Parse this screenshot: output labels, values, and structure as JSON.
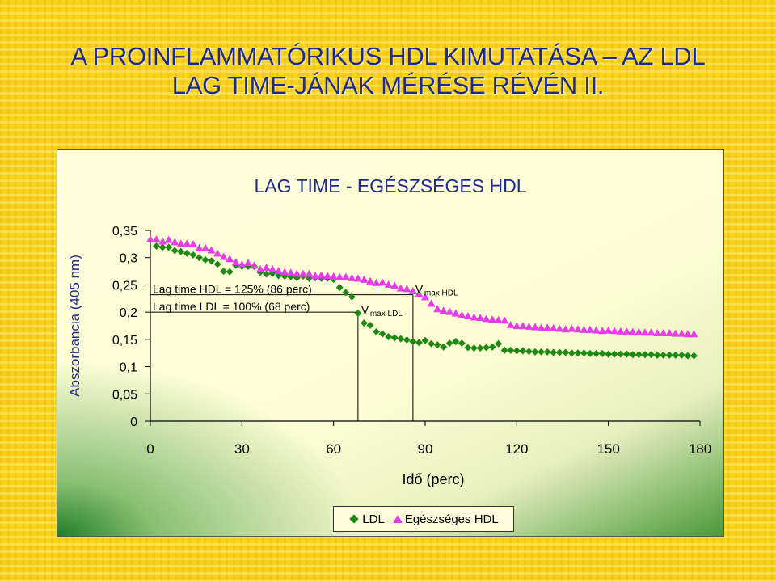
{
  "slide": {
    "title_line1": "A PROINFLAMMATÓRIKUS HDL KIMUTATÁSA – AZ LDL",
    "title_line2": "LAG TIME-JÁNAK MÉRÉSE RÉVÉN II."
  },
  "chart_data": {
    "type": "scatter",
    "title": "LAG TIME - EGÉSZSÉGES HDL",
    "xlabel": "Idő (perc)",
    "ylabel": "Abszorbancia (405 nm)",
    "xlim": [
      0,
      180
    ],
    "ylim": [
      0,
      0.35
    ],
    "x_ticks": [
      "0",
      "30",
      "60",
      "90",
      "120",
      "150",
      "180"
    ],
    "y_ticks": [
      "0",
      "0,05",
      "0,1",
      "0,15",
      "0,2",
      "0,25",
      "0,3",
      "0,35"
    ],
    "grid": false,
    "legend_position": "bottom",
    "colors": {
      "ldl": "#1e8a12",
      "hdl": "#e83ce8",
      "frame_title": "#1e2a8c"
    },
    "series": [
      {
        "name": "LDL",
        "marker": "diamond",
        "x": [
          2,
          4,
          6,
          8,
          10,
          12,
          14,
          16,
          18,
          20,
          22,
          24,
          26,
          28,
          30,
          32,
          34,
          36,
          38,
          40,
          42,
          44,
          46,
          48,
          50,
          52,
          54,
          56,
          58,
          60,
          62,
          64,
          66,
          68,
          70,
          72,
          74,
          76,
          78,
          80,
          82,
          84,
          86,
          88,
          90,
          92,
          94,
          96,
          98,
          100,
          102,
          104,
          106,
          108,
          110,
          112,
          114,
          116,
          118,
          120,
          122,
          124,
          126,
          128,
          130,
          132,
          134,
          136,
          138,
          140,
          142,
          144,
          146,
          148,
          150,
          152,
          154,
          156,
          158,
          160,
          162,
          164,
          166,
          168,
          170,
          172,
          174,
          176,
          178
        ],
        "y": [
          0.321,
          0.319,
          0.319,
          0.313,
          0.311,
          0.308,
          0.305,
          0.3,
          0.296,
          0.294,
          0.288,
          0.275,
          0.274,
          0.286,
          0.284,
          0.284,
          0.284,
          0.273,
          0.27,
          0.271,
          0.267,
          0.266,
          0.265,
          0.263,
          0.266,
          0.262,
          0.263,
          0.262,
          0.262,
          0.26,
          0.245,
          0.236,
          0.228,
          0.198,
          0.18,
          0.176,
          0.164,
          0.16,
          0.155,
          0.153,
          0.151,
          0.149,
          0.146,
          0.144,
          0.148,
          0.142,
          0.14,
          0.136,
          0.143,
          0.146,
          0.143,
          0.135,
          0.134,
          0.134,
          0.135,
          0.136,
          0.142,
          0.13,
          0.13,
          0.129,
          0.129,
          0.128,
          0.127,
          0.127,
          0.127,
          0.126,
          0.126,
          0.126,
          0.125,
          0.125,
          0.125,
          0.124,
          0.124,
          0.124,
          0.123,
          0.123,
          0.123,
          0.123,
          0.122,
          0.122,
          0.122,
          0.122,
          0.121,
          0.121,
          0.121,
          0.121,
          0.121,
          0.12,
          0.12
        ]
      },
      {
        "name": "Egészséges HDL",
        "marker": "triangle",
        "x": [
          0,
          2,
          4,
          6,
          8,
          10,
          12,
          14,
          16,
          18,
          20,
          22,
          24,
          26,
          28,
          30,
          32,
          34,
          36,
          38,
          40,
          42,
          44,
          46,
          48,
          50,
          52,
          54,
          56,
          58,
          60,
          62,
          64,
          66,
          68,
          70,
          72,
          74,
          76,
          78,
          80,
          82,
          84,
          86,
          88,
          90,
          92,
          94,
          96,
          98,
          100,
          102,
          104,
          106,
          108,
          110,
          112,
          114,
          116,
          118,
          120,
          122,
          124,
          126,
          128,
          130,
          132,
          134,
          136,
          138,
          140,
          142,
          144,
          146,
          148,
          150,
          152,
          154,
          156,
          158,
          160,
          162,
          164,
          166,
          168,
          170,
          172,
          174,
          176,
          178
        ],
        "y": [
          0.333,
          0.333,
          0.329,
          0.332,
          0.328,
          0.325,
          0.325,
          0.324,
          0.317,
          0.317,
          0.313,
          0.307,
          0.301,
          0.297,
          0.291,
          0.287,
          0.29,
          0.285,
          0.278,
          0.281,
          0.278,
          0.275,
          0.273,
          0.272,
          0.27,
          0.27,
          0.27,
          0.266,
          0.267,
          0.266,
          0.265,
          0.264,
          0.264,
          0.262,
          0.261,
          0.259,
          0.256,
          0.253,
          0.254,
          0.25,
          0.248,
          0.243,
          0.242,
          0.238,
          0.233,
          0.227,
          0.215,
          0.205,
          0.202,
          0.2,
          0.197,
          0.194,
          0.192,
          0.19,
          0.189,
          0.187,
          0.186,
          0.185,
          0.184,
          0.176,
          0.174,
          0.174,
          0.173,
          0.172,
          0.171,
          0.171,
          0.17,
          0.169,
          0.168,
          0.169,
          0.168,
          0.167,
          0.167,
          0.166,
          0.165,
          0.166,
          0.165,
          0.164,
          0.164,
          0.163,
          0.163,
          0.162,
          0.162,
          0.161,
          0.161,
          0.161,
          0.16,
          0.16,
          0.159,
          0.159
        ]
      }
    ],
    "annotations": [
      {
        "id": "hdl",
        "text": "Lag time HDL = 125% (86 perc)",
        "vmax_main": "V",
        "vmax_sub": "max HDL",
        "x": 86,
        "y": 0.232
      },
      {
        "id": "ldl",
        "text": "Lag time LDL = 100% (68 perc)",
        "vmax_main": "V",
        "vmax_sub": "max LDL",
        "x": 68,
        "y": 0.2
      }
    ]
  }
}
